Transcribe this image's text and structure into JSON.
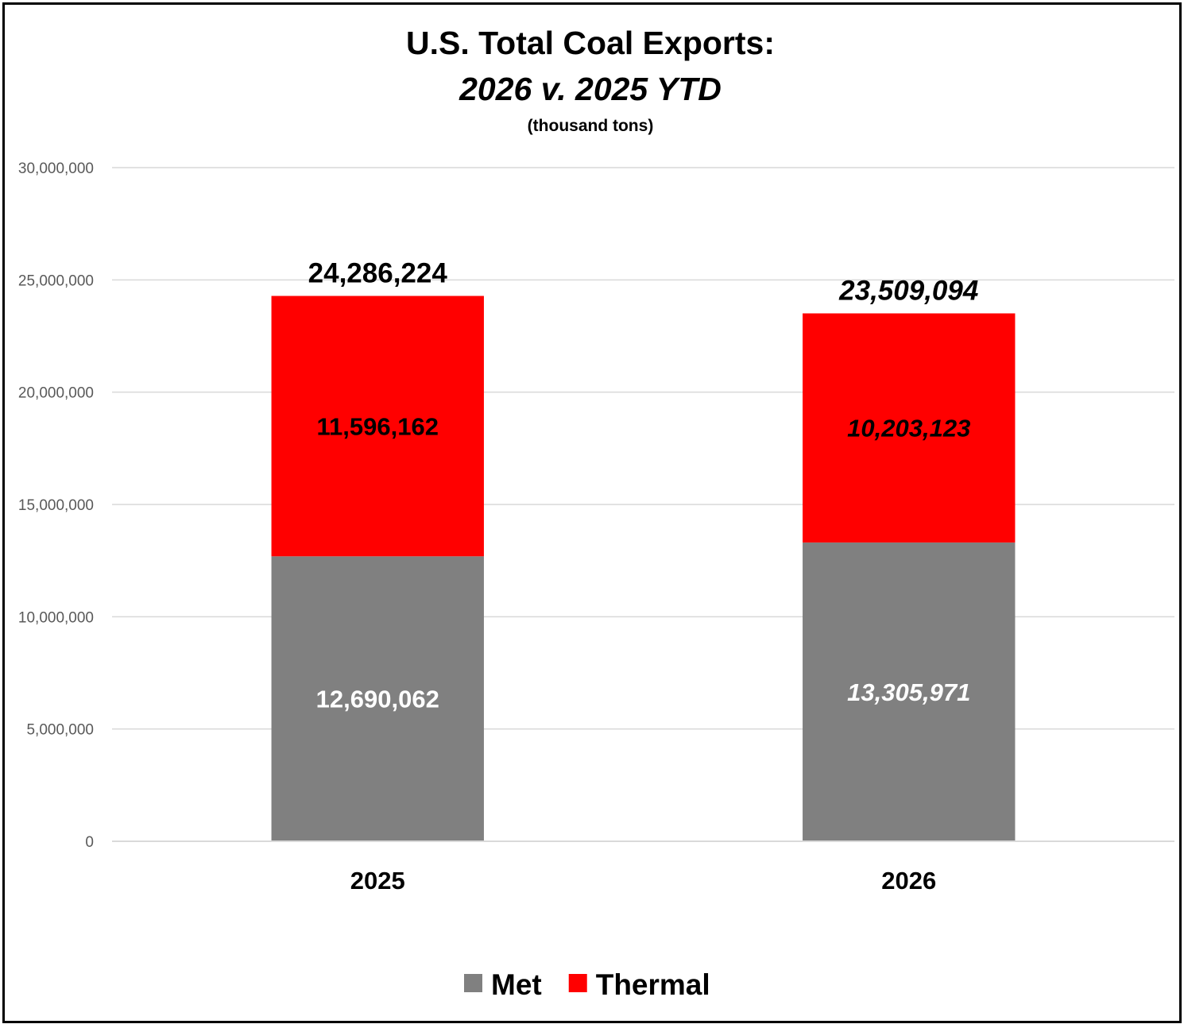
{
  "chart_data": {
    "type": "bar",
    "stacked": true,
    "title": "U.S. Total Coal Exports:",
    "subtitle": "2026 v. 2025 YTD",
    "unit_note": "(thousand tons)",
    "categories": [
      "2025",
      "2026"
    ],
    "series": [
      {
        "name": "Met",
        "color": "#808080",
        "label_color": "#ffffff",
        "values": [
          12690062,
          13305971
        ],
        "value_labels": [
          "12,690,062",
          "13,305,971"
        ]
      },
      {
        "name": "Thermal",
        "color": "#ff0000",
        "label_color": "#000000",
        "values": [
          11596162,
          10203123
        ],
        "value_labels": [
          "11,596,162",
          "10,203,123"
        ]
      }
    ],
    "totals": [
      24286224,
      23509094
    ],
    "total_labels": [
      "24,286,224",
      "23,509,094"
    ],
    "italic_categories": [
      "2026"
    ],
    "ylim": [
      0,
      30000000
    ],
    "yticks": [
      0,
      5000000,
      10000000,
      15000000,
      20000000,
      25000000,
      30000000
    ],
    "ytick_labels": [
      "0",
      "5,000,000",
      "10,000,000",
      "15,000,000",
      "20,000,000",
      "25,000,000",
      "30,000,000"
    ],
    "grid": true,
    "legend_position": "bottom"
  }
}
